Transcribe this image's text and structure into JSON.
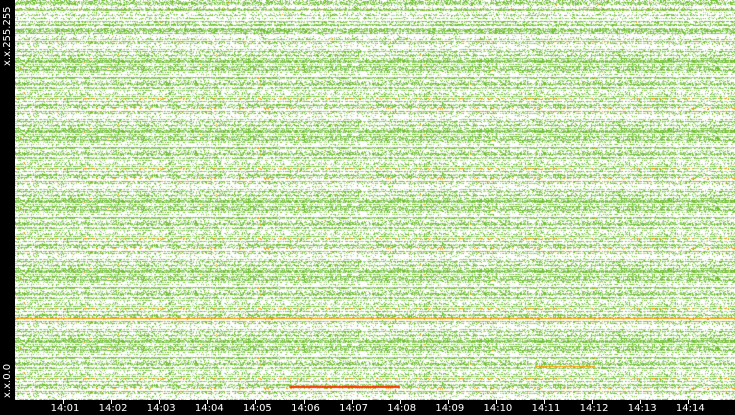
{
  "chart_data": {
    "type": "heatmap",
    "title": "",
    "xlabel": "",
    "ylabel": "",
    "y_tick_labels": [
      "x.x.255.255",
      "x.x.0.0"
    ],
    "x_tick_labels": [
      "14:01",
      "14:02",
      "14:03",
      "14:04",
      "14:05",
      "14:06",
      "14:07",
      "14:08",
      "14:09",
      "14:10",
      "14:11",
      "14:12",
      "14:13",
      "14:14"
    ],
    "background": "#ffffff",
    "colors": {
      "low": "#a9d68c",
      "mid": "#6cbf2a",
      "high": "#ff9a00",
      "max": "#ff3300"
    },
    "grid": false,
    "legend": "none"
  }
}
